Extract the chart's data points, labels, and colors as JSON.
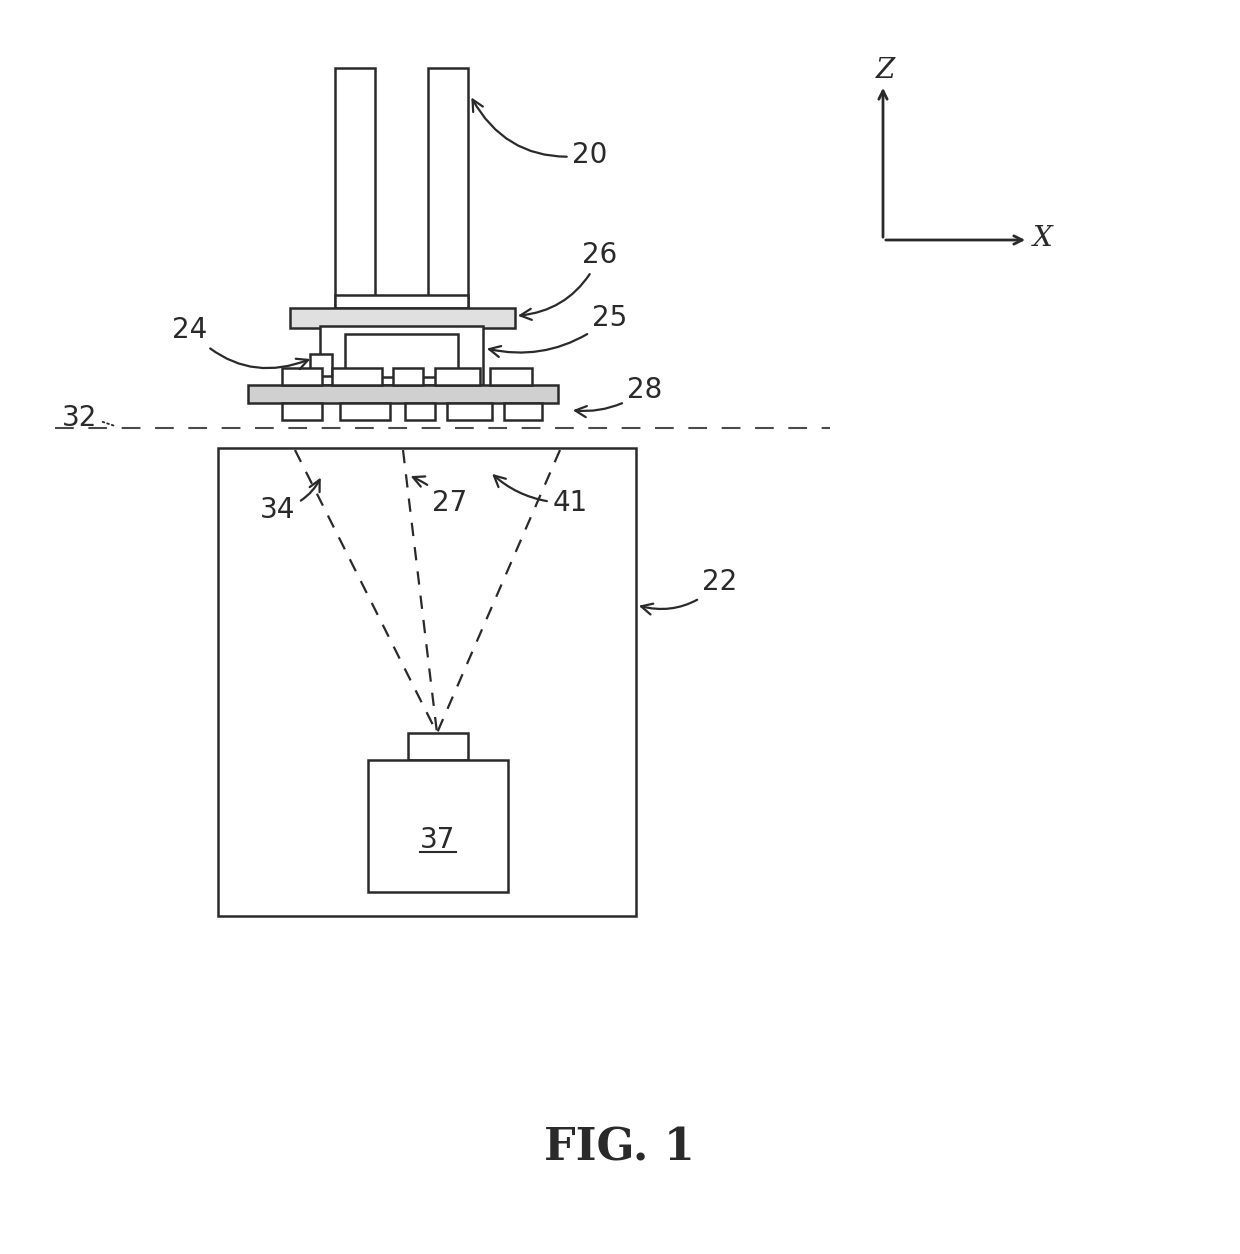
{
  "bg_color": "#ffffff",
  "line_color": "#2a2a2a",
  "line_width": 1.8,
  "fig_label": "FIG. 1",
  "fig_label_fontsize": 32,
  "annot_fontsize": 20,
  "axis_fontsize": 20
}
